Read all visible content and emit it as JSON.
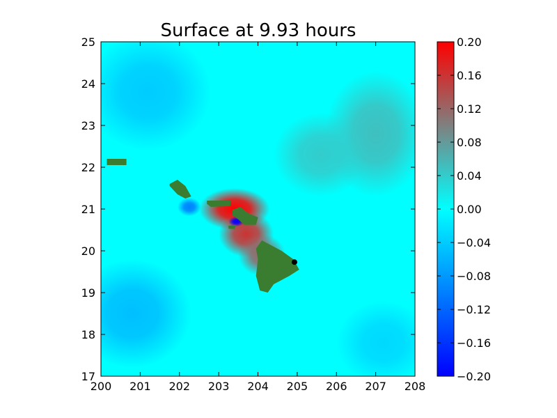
{
  "chart_data": {
    "type": "heatmap",
    "title": "Surface at 9.93 hours",
    "xlabel": "",
    "ylabel": "",
    "xlim": [
      200,
      208
    ],
    "ylim": [
      17,
      25
    ],
    "x_ticks": [
      "200",
      "201",
      "202",
      "203",
      "204",
      "205",
      "206",
      "207",
      "208"
    ],
    "y_ticks": [
      "17",
      "18",
      "19",
      "20",
      "21",
      "22",
      "23",
      "24",
      "25"
    ],
    "grid": false,
    "colorbar": {
      "vmin": -0.2,
      "vmax": 0.2,
      "ticks": [
        "0.20",
        "0.16",
        "0.12",
        "0.08",
        "0.04",
        "0.00",
        "−0.04",
        "−0.08",
        "−0.12",
        "−0.16",
        "−0.20"
      ],
      "colors": [
        "#0000ff",
        "#00ffff",
        "#ff0000"
      ]
    },
    "background_value": 0.0,
    "land_color": "#3a7d30",
    "marker": {
      "x": 204.93,
      "y": 19.73,
      "color": "#000000"
    },
    "anomalies": [
      {
        "x": 203.4,
        "y": 21.0,
        "rx": 0.9,
        "ry": 0.5,
        "value": 0.2
      },
      {
        "x": 203.7,
        "y": 20.4,
        "rx": 0.7,
        "ry": 0.55,
        "value": 0.16
      },
      {
        "x": 204.1,
        "y": 19.9,
        "rx": 0.6,
        "ry": 0.5,
        "value": 0.12
      },
      {
        "x": 203.45,
        "y": 20.7,
        "rx": 0.2,
        "ry": 0.12,
        "value": -0.2
      },
      {
        "x": 202.25,
        "y": 21.05,
        "rx": 0.3,
        "ry": 0.22,
        "value": -0.1
      },
      {
        "x": 200.8,
        "y": 18.5,
        "rx": 1.5,
        "ry": 1.3,
        "value": -0.05
      },
      {
        "x": 201.2,
        "y": 23.8,
        "rx": 1.6,
        "ry": 1.4,
        "value": -0.04
      },
      {
        "x": 207.0,
        "y": 22.8,
        "rx": 1.3,
        "ry": 1.5,
        "value": 0.05
      },
      {
        "x": 205.6,
        "y": 22.3,
        "rx": 1.2,
        "ry": 1.0,
        "value": 0.04
      },
      {
        "x": 207.2,
        "y": 17.8,
        "rx": 1.2,
        "ry": 1.0,
        "value": -0.03
      }
    ],
    "land": [
      {
        "name": "Kauai",
        "points": [
          [
            200.15,
            22.2
          ],
          [
            200.65,
            22.2
          ],
          [
            200.65,
            22.05
          ],
          [
            200.15,
            22.05
          ]
        ]
      },
      {
        "name": "Oahu",
        "points": [
          [
            201.75,
            21.6
          ],
          [
            201.95,
            21.7
          ],
          [
            202.15,
            21.55
          ],
          [
            202.3,
            21.3
          ],
          [
            202.15,
            21.25
          ],
          [
            201.95,
            21.35
          ],
          [
            201.75,
            21.55
          ]
        ]
      },
      {
        "name": "Molokai",
        "points": [
          [
            202.7,
            21.2
          ],
          [
            203.3,
            21.2
          ],
          [
            203.3,
            21.07
          ],
          [
            202.8,
            21.05
          ],
          [
            202.7,
            21.12
          ]
        ]
      },
      {
        "name": "Maui",
        "points": [
          [
            203.35,
            20.98
          ],
          [
            203.55,
            21.05
          ],
          [
            203.75,
            20.9
          ],
          [
            204.0,
            20.8
          ],
          [
            203.95,
            20.62
          ],
          [
            203.65,
            20.62
          ],
          [
            203.5,
            20.75
          ],
          [
            203.35,
            20.85
          ]
        ]
      },
      {
        "name": "Kahoolawe",
        "points": [
          [
            203.25,
            20.6
          ],
          [
            203.45,
            20.62
          ],
          [
            203.4,
            20.52
          ],
          [
            203.25,
            20.53
          ]
        ]
      },
      {
        "name": "Hawaii",
        "points": [
          [
            204.1,
            20.25
          ],
          [
            204.3,
            20.15
          ],
          [
            204.6,
            20.0
          ],
          [
            204.9,
            19.8
          ],
          [
            205.05,
            19.55
          ],
          [
            204.8,
            19.4
          ],
          [
            204.4,
            19.2
          ],
          [
            204.25,
            19.0
          ],
          [
            204.05,
            19.05
          ],
          [
            203.95,
            19.4
          ],
          [
            204.0,
            19.8
          ],
          [
            203.95,
            20.05
          ]
        ]
      }
    ]
  }
}
